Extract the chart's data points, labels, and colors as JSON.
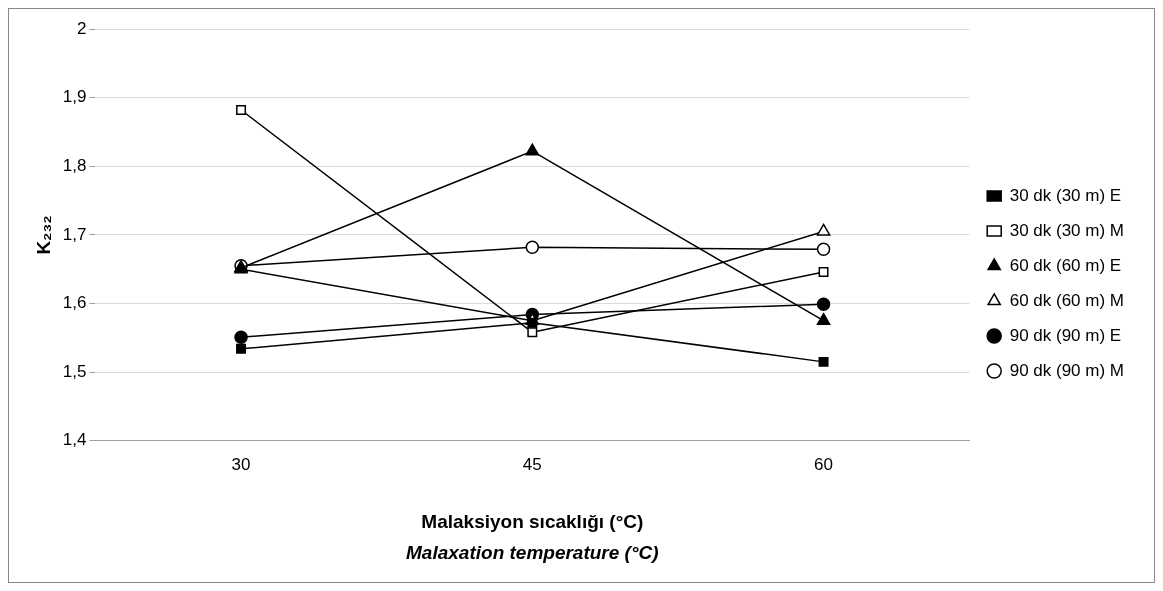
{
  "chart_data": {
    "type": "line",
    "categories": [
      "30",
      "45",
      "60"
    ],
    "xlabel": "Malaksiyon sıcaklığı (°C)",
    "ylabel": "K₂₃₂",
    "annotations": [
      "Malaxation temperature (°C)"
    ],
    "ylim": [
      1.4,
      2
    ],
    "yticks": [
      {
        "value": 1.4,
        "label": "1,4"
      },
      {
        "value": 1.5,
        "label": "1,5"
      },
      {
        "value": 1.6,
        "label": "1,6"
      },
      {
        "value": 1.7,
        "label": "1,7"
      },
      {
        "value": 1.8,
        "label": "1,8"
      },
      {
        "value": 1.9,
        "label": "1,9"
      },
      {
        "value": 2,
        "label": "2"
      }
    ],
    "grid": "y",
    "legend": "right",
    "series": [
      {
        "name": "30 dk (30 m) E",
        "color": "#000000",
        "marker": "square",
        "values": [
          1.534,
          1.572,
          1.515
        ]
      },
      {
        "name": "30 dk (30 m) M",
        "color": "#000000",
        "marker": "square",
        "colors": [
          "#ffffff",
          "#ffffff",
          "#ffffff"
        ],
        "values": [
          1.882,
          1.558,
          1.646
        ]
      },
      {
        "name": "60 dk (60 m) E",
        "color": "#000000",
        "marker": "triangle",
        "values": [
          1.652,
          1.822,
          1.575
        ]
      },
      {
        "name": "60 dk (60 m) M",
        "color": "#000000",
        "marker": "triangle",
        "colors": [
          "#ffffff",
          "#ffffff",
          "#ffffff"
        ],
        "values": [
          1.65,
          1.575,
          1.705
        ]
      },
      {
        "name": "90 dk (90 m) E",
        "color": "#000000",
        "marker": "circle",
        "values": [
          1.551,
          1.584,
          1.599
        ]
      },
      {
        "name": "90 dk (90 m) M",
        "color": "#000000",
        "marker": "circle",
        "colors": [
          "#ffffff",
          "#ffffff",
          "#ffffff"
        ],
        "values": [
          1.655,
          1.682,
          1.679
        ]
      }
    ]
  }
}
